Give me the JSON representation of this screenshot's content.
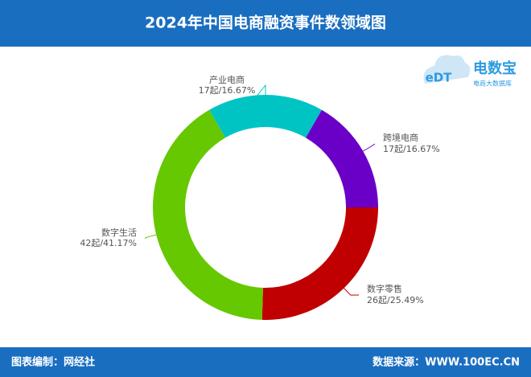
{
  "chart_data": {
    "type": "pie",
    "title": "2024年中国电商融资事件数领域图",
    "categories": [
      "产业电商",
      "跨境电商",
      "数字零售",
      "数字生活"
    ],
    "values": [
      17,
      17,
      26,
      42
    ],
    "value_labels": [
      "17起/16.67%",
      "17起/16.67%",
      "26起/25.49%",
      "42起/41.17%"
    ],
    "colors": [
      "#00c4c4",
      "#6a00c8",
      "#c00000",
      "#66c800"
    ]
  },
  "logo": {
    "mark": "eDT",
    "name": "电数宝",
    "tagline": "电商大数据库"
  },
  "footer": {
    "left": "图表编制：网经社",
    "right": "数据来源：WWW.100EC.CN"
  }
}
